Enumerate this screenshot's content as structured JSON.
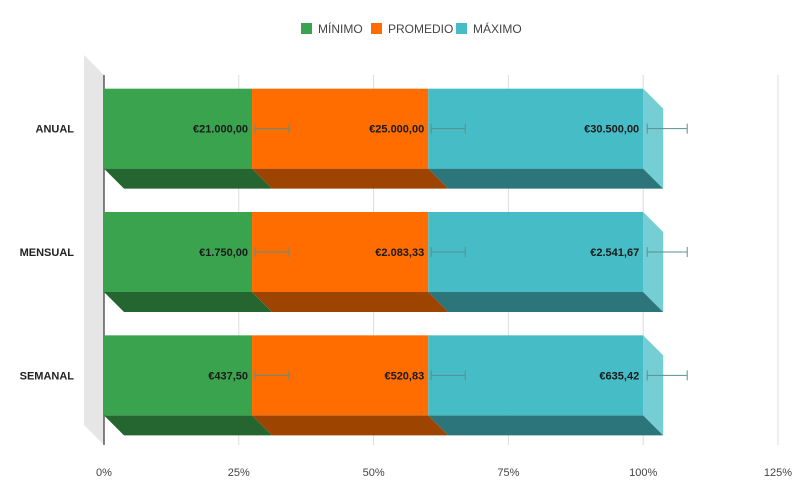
{
  "chart_data": {
    "type": "bar",
    "orientation": "horizontal",
    "stacked": "percent",
    "style": "3d",
    "categories": [
      "ANUAL",
      "MENSUAL",
      "SEMANAL"
    ],
    "series": [
      {
        "name": "MÍNIMO",
        "color": "#3aa34e",
        "values": [
          21000.0,
          1750.0,
          437.5
        ],
        "labels": [
          "€21.000,00",
          "€1.750,00",
          "€437,50"
        ]
      },
      {
        "name": "PROMEDIO",
        "color": "#ff6d01",
        "values": [
          25000.0,
          2083.33,
          520.83
        ],
        "labels": [
          "€25.000,00",
          "€2.083,33",
          "€520,83"
        ]
      },
      {
        "name": "MÁXIMO",
        "color": "#46bdc6",
        "values": [
          30500.0,
          2541.67,
          635.42
        ],
        "labels": [
          "€30.500,00",
          "€2.541,67",
          "€635,42"
        ]
      }
    ],
    "x_ticks": [
      "0%",
      "25%",
      "50%",
      "75%",
      "100%",
      "125%"
    ],
    "xlim": [
      0,
      125
    ],
    "grid": true,
    "error_bars": true,
    "legend_position": "top",
    "title": "",
    "xlabel": "",
    "ylabel": ""
  }
}
